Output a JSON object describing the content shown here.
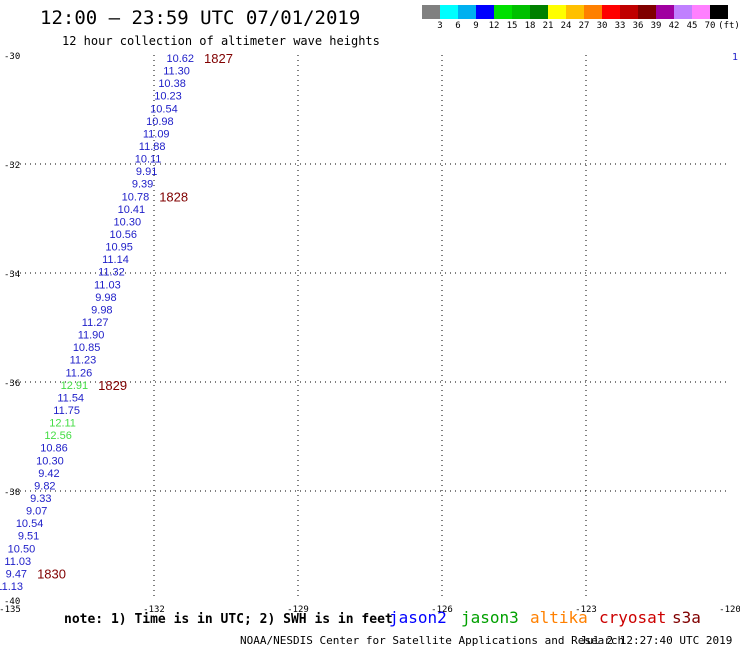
{
  "header": {
    "title": "12:00 — 23:59 UTC 07/01/2019",
    "subtitle": "12 hour collection of altimeter wave heights"
  },
  "color_scale": {
    "swatches": [
      "#808080",
      "#00ffff",
      "#00b0f0",
      "#0000ff",
      "#00e000",
      "#00c000",
      "#008000",
      "#ffff00",
      "#ffc000",
      "#ff8000",
      "#ff0000",
      "#c00000",
      "#800000",
      "#a000a0",
      "#c080ff",
      "#ff80ff",
      "#000000"
    ],
    "labels": [
      "3",
      "6",
      "9",
      "12",
      "15",
      "18",
      "21",
      "24",
      "27",
      "30",
      "33",
      "36",
      "39",
      "42",
      "45",
      "70"
    ],
    "unit": "(ft)"
  },
  "map": {
    "lon_range": [
      -135,
      -120
    ],
    "lat_range": [
      -40,
      -30
    ],
    "lon_ticks": [
      "-135",
      "-132",
      "-129",
      "-126",
      "-123",
      "-120"
    ],
    "lat_ticks": [
      "-30",
      "-32",
      "-34",
      "-36",
      "-38",
      "-40"
    ],
    "colors": {
      "jason2": "#0000ff",
      "jason3": "#00a000",
      "altika": "#ff8000",
      "cryosat": "#cc0000",
      "s3a": "#800000",
      "green_light": "#44dd44"
    },
    "track": [
      {
        "t": "10.62",
        "c": "#1e1ec8"
      },
      {
        "t": "11.30",
        "c": "#1e1ec8"
      },
      {
        "t": "10.38",
        "c": "#1e1ec8"
      },
      {
        "t": "10.23",
        "c": "#1e1ec8"
      },
      {
        "t": "10.54",
        "c": "#1e1ec8"
      },
      {
        "t": "10.98",
        "c": "#1e1ec8"
      },
      {
        "t": "11.09",
        "c": "#1e1ec8"
      },
      {
        "t": "11.88",
        "c": "#1e1ec8"
      },
      {
        "t": "10.11",
        "c": "#1e1ec8"
      },
      {
        "t": "9.91",
        "c": "#1e1ec8"
      },
      {
        "t": "9.39",
        "c": "#1e1ec8"
      },
      {
        "t": "10.78",
        "c": "#1e1ec8"
      },
      {
        "t": "10.41",
        "c": "#1e1ec8"
      },
      {
        "t": "10.30",
        "c": "#1e1ec8"
      },
      {
        "t": "10.56",
        "c": "#1e1ec8"
      },
      {
        "t": "10.95",
        "c": "#1e1ec8"
      },
      {
        "t": "11.14",
        "c": "#1e1ec8"
      },
      {
        "t": "11.32",
        "c": "#1e1ec8"
      },
      {
        "t": "11.03",
        "c": "#1e1ec8"
      },
      {
        "t": "9.98",
        "c": "#1e1ec8"
      },
      {
        "t": "9.98",
        "c": "#1e1ec8"
      },
      {
        "t": "11.27",
        "c": "#1e1ec8"
      },
      {
        "t": "11.90",
        "c": "#1e1ec8"
      },
      {
        "t": "10.85",
        "c": "#1e1ec8"
      },
      {
        "t": "11.23",
        "c": "#1e1ec8"
      },
      {
        "t": "11.26",
        "c": "#1e1ec8"
      },
      {
        "t": "12.91",
        "c": "#44dd44"
      },
      {
        "t": "11.54",
        "c": "#1e1ec8"
      },
      {
        "t": "11.75",
        "c": "#1e1ec8"
      },
      {
        "t": "12.11",
        "c": "#44dd44"
      },
      {
        "t": "12.56",
        "c": "#44dd44"
      },
      {
        "t": "10.86",
        "c": "#1e1ec8"
      },
      {
        "t": "10.30",
        "c": "#1e1ec8"
      },
      {
        "t": "9.42",
        "c": "#1e1ec8"
      },
      {
        "t": "9.82",
        "c": "#1e1ec8"
      },
      {
        "t": "9.33",
        "c": "#1e1ec8"
      },
      {
        "t": "9.07",
        "c": "#1e1ec8"
      },
      {
        "t": "10.54",
        "c": "#1e1ec8"
      },
      {
        "t": "9.51",
        "c": "#1e1ec8"
      },
      {
        "t": "10.50",
        "c": "#1e1ec8"
      },
      {
        "t": "11.03",
        "c": "#1e1ec8"
      },
      {
        "t": "9.47",
        "c": "#1e1ec8"
      },
      {
        "t": "11.13",
        "c": "#1e1ec8"
      }
    ],
    "time_labels": [
      {
        "t": "1827",
        "after": 0
      },
      {
        "t": "1828",
        "after": 11
      },
      {
        "t": "1829",
        "after": 26
      },
      {
        "t": "1830",
        "after": 41
      }
    ],
    "edge_label": "1"
  },
  "legend": {
    "note": "note: 1) Time is in UTC; 2) SWH is in feet",
    "sats": [
      "jason2",
      "jason3",
      "altika",
      "cryosat",
      "s3a"
    ]
  },
  "footer": {
    "credit": "NOAA/NESDIS Center for Satellite Applications and Research",
    "timestamp": "Jul  2 12:27:40 UTC 2019"
  }
}
